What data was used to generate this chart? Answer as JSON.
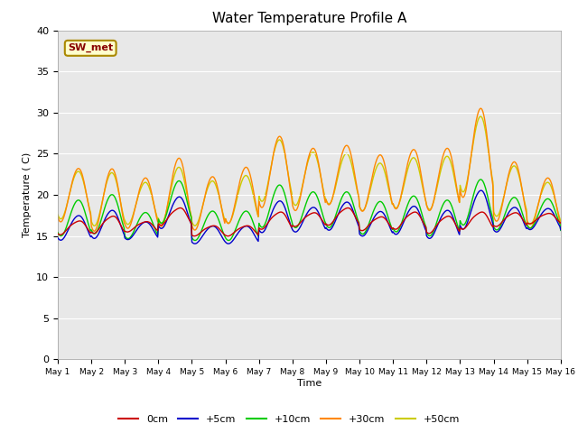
{
  "title": "Water Temperature Profile A",
  "xlabel": "Time",
  "ylabel": "Temperature ( C)",
  "ylim": [
    0,
    40
  ],
  "yticks": [
    0,
    5,
    10,
    15,
    20,
    25,
    30,
    35,
    40
  ],
  "bg_color": "#e8e8e8",
  "legend_labels": [
    "0cm",
    "+5cm",
    "+10cm",
    "+30cm",
    "+50cm"
  ],
  "legend_colors": [
    "#cc0000",
    "#0000cc",
    "#00cc00",
    "#ff8800",
    "#cccc00"
  ],
  "annotation_text": "SW_met",
  "annotation_color": "#880000",
  "annotation_bg": "#ffffcc",
  "annotation_border": "#aa8800",
  "figsize": [
    6.4,
    4.8
  ],
  "dpi": 100
}
